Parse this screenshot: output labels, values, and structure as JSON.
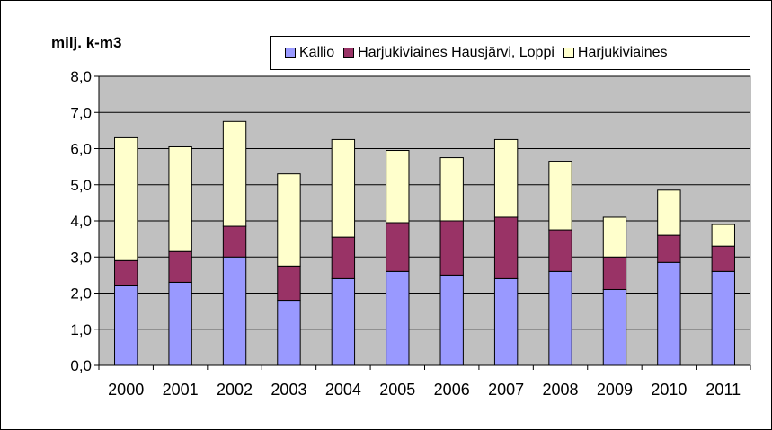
{
  "colors": {
    "plot_background": "#c0c0c0",
    "kallio": "#9999ff",
    "harju_hl": "#993366",
    "harju": "#ffffcc"
  },
  "chart_data": {
    "type": "bar",
    "stacked": true,
    "ylabel": "milj. k-m3",
    "ylim": [
      0,
      8
    ],
    "ytick_step": 1,
    "yticks": [
      "0,0",
      "1,0",
      "2,0",
      "3,0",
      "4,0",
      "5,0",
      "6,0",
      "7,0",
      "8,0"
    ],
    "grid": true,
    "legend_position": "top-right",
    "categories": [
      "2000",
      "2001",
      "2002",
      "2003",
      "2004",
      "2005",
      "2006",
      "2007",
      "2008",
      "2009",
      "2010",
      "2011"
    ],
    "series": [
      {
        "name": "Kallio",
        "color": "#9999ff",
        "values": [
          2.2,
          2.3,
          3.0,
          1.8,
          2.4,
          2.6,
          2.5,
          2.4,
          2.6,
          2.1,
          2.85,
          2.6
        ]
      },
      {
        "name": "Harjukiviaines Hausjärvi, Loppi",
        "color": "#993366",
        "values": [
          0.7,
          0.85,
          0.85,
          0.95,
          1.15,
          1.35,
          1.5,
          1.7,
          1.15,
          0.9,
          0.75,
          0.7
        ]
      },
      {
        "name": "Harjukiviaines",
        "color": "#ffffcc",
        "values": [
          3.4,
          2.9,
          2.9,
          2.55,
          2.7,
          2.0,
          1.75,
          2.15,
          1.9,
          1.1,
          1.25,
          0.6
        ]
      }
    ]
  }
}
